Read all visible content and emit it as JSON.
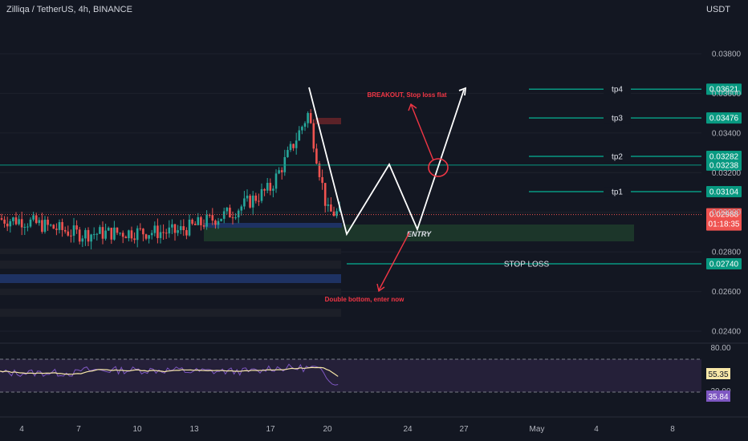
{
  "header": {
    "title": "Zilliqa / TetherUS, 4h, BINANCE",
    "currency": "USDT"
  },
  "chart_data": {
    "type": "candlestick",
    "symbol": "Zilliqa / TetherUS",
    "interval": "4h",
    "exchange": "BINANCE",
    "y_axis": {
      "unit": "USDT",
      "ticks": [
        "0.03800",
        "0.03600",
        "0.03400",
        "0.03200",
        "0.03000",
        "0.02800",
        "0.02600",
        "0.02400"
      ],
      "range": [
        0.0236,
        0.0392
      ]
    },
    "x_axis": {
      "ticks": [
        "4",
        "7",
        "10",
        "13",
        "17",
        "20",
        "24",
        "27",
        "May",
        "4",
        "8"
      ]
    },
    "candles_approx": [
      {
        "day": "1",
        "close": 0.0297
      },
      {
        "day": "4",
        "close": 0.0296
      },
      {
        "day": "7",
        "close": 0.0289
      },
      {
        "day": "10",
        "close": 0.029
      },
      {
        "day": "12",
        "close": 0.029
      },
      {
        "day": "13",
        "close": 0.0293
      },
      {
        "day": "15",
        "close": 0.03
      },
      {
        "day": "17",
        "close": 0.0312
      },
      {
        "day": "18",
        "close": 0.033
      },
      {
        "day": "19",
        "close": 0.035
      },
      {
        "day": "20",
        "close": 0.03
      },
      {
        "day": "21",
        "close": 0.0299
      }
    ],
    "current_price": {
      "value": "0.02988",
      "countdown": "01:18:35"
    },
    "levels": [
      {
        "label": "tp4",
        "value": "0.03621"
      },
      {
        "label": "tp3",
        "value": "0.03476"
      },
      {
        "label": "tp2",
        "value": "0.03282"
      },
      {
        "label": "",
        "value": "0.03238"
      },
      {
        "label": "tp1",
        "value": "0.03104"
      },
      {
        "label": "STOP LOSS",
        "value": "0.02740"
      }
    ],
    "annotations": [
      "BREAKOUT, Stop loss flat",
      "ENTRY",
      "Double bottom, enter now"
    ],
    "projected_path": [
      {
        "day": "19",
        "price": 0.0362
      },
      {
        "day": "21",
        "price": 0.0289
      },
      {
        "day": "23",
        "price": 0.0318
      },
      {
        "day": "25",
        "price": 0.029
      },
      {
        "day": "27",
        "price": 0.0362
      }
    ],
    "rsi": {
      "levels": [
        "80.00",
        "20.00"
      ],
      "rsi_value": "35.84",
      "ma_value": "55.35"
    }
  },
  "colors": {
    "background": "#131722",
    "up": "#26a69a",
    "down": "#ef5350",
    "level": "#089981",
    "path": "#ffffff",
    "annotation": "#f23645",
    "entry_zone": "#1e3a2b",
    "blue_zone": "#1e3263",
    "rsi_line": "#7e57c2",
    "rsi_ma": "#f7e7a8"
  }
}
